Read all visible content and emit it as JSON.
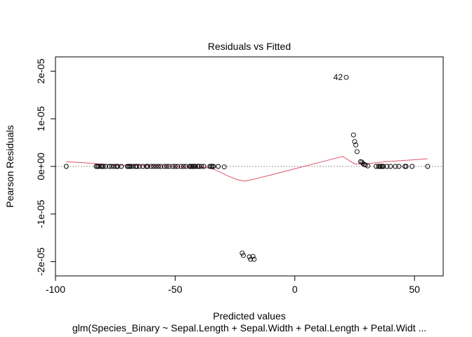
{
  "chart_data": {
    "type": "scatter",
    "title": "Residuals vs Fitted",
    "xlabel": "Predicted values",
    "subtitle": "glm(Species_Binary ~ Sepal.Length + Sepal.Width + Petal.Length + Petal.Widt ...",
    "ylabel": "Pearson Residuals",
    "xlim": [
      -100,
      62
    ],
    "ylim": [
      -2.3e-05,
      2.3e-05
    ],
    "x_ticks": [
      -100,
      -50,
      0,
      50
    ],
    "x_tick_labels": [
      "-100",
      "-50",
      "0",
      "50"
    ],
    "y_ticks": [
      -2e-05,
      -1e-05,
      0,
      1e-05,
      2e-05
    ],
    "y_tick_labels": [
      "-2e-05",
      "-1e-05",
      "0e+00",
      "1e-05",
      "2e-05"
    ],
    "reference_line_y": 0,
    "colors": {
      "points": "#000000",
      "smooth": "#df536b",
      "reference": "#999999"
    },
    "series": [
      {
        "points": [
          [
            -95.5,
            0
          ],
          [
            -83,
            0
          ],
          [
            -82.5,
            0
          ],
          [
            -82,
            0
          ],
          [
            -81,
            0
          ],
          [
            -80.5,
            0
          ],
          [
            -80,
            0
          ],
          [
            -79,
            0
          ],
          [
            -77.5,
            0
          ],
          [
            -76.5,
            0
          ],
          [
            -75.5,
            0
          ],
          [
            -74.5,
            0
          ],
          [
            -74,
            0
          ],
          [
            -72.5,
            0
          ],
          [
            -70,
            0
          ],
          [
            -69.5,
            0
          ],
          [
            -69,
            0
          ],
          [
            -68.5,
            0
          ],
          [
            -67.5,
            0
          ],
          [
            -66.5,
            0
          ],
          [
            -66,
            0
          ],
          [
            -65,
            0
          ],
          [
            -63.5,
            0
          ],
          [
            -62,
            0
          ],
          [
            -61.5,
            0
          ],
          [
            -60,
            0
          ],
          [
            -59,
            0
          ],
          [
            -58,
            0
          ],
          [
            -57,
            0
          ],
          [
            -56,
            0
          ],
          [
            -54.5,
            0
          ],
          [
            -53.5,
            0
          ],
          [
            -52.5,
            0
          ],
          [
            -51,
            0
          ],
          [
            -50,
            0
          ],
          [
            -49,
            0
          ],
          [
            -47.5,
            0
          ],
          [
            -46.5,
            0
          ],
          [
            -45.5,
            0
          ],
          [
            -44,
            0
          ],
          [
            -43.5,
            0
          ],
          [
            -43,
            0
          ],
          [
            -42.5,
            0
          ],
          [
            -42,
            0
          ],
          [
            -41.5,
            0
          ],
          [
            -40.5,
            0
          ],
          [
            -40,
            0
          ],
          [
            -39,
            0
          ],
          [
            -38,
            0
          ],
          [
            -35.5,
            0
          ],
          [
            -35,
            0
          ],
          [
            -34.5,
            0
          ],
          [
            -34,
            0
          ],
          [
            -32,
            0
          ],
          [
            -29.5,
            -1e-07
          ],
          [
            -22,
            -1.82e-05
          ],
          [
            -21.5,
            -1.87e-05
          ],
          [
            -19,
            -1.9e-05
          ],
          [
            -18.5,
            -1.95e-05
          ],
          [
            -17.5,
            -1.89e-05
          ],
          [
            -17,
            -1.95e-05
          ],
          [
            21.5,
            1.87e-05
          ],
          [
            24.5,
            6.6e-06
          ],
          [
            25,
            5.2e-06
          ],
          [
            25.5,
            4.5e-06
          ],
          [
            26,
            3.1e-06
          ],
          [
            27.5,
            1e-06
          ],
          [
            28,
            9e-07
          ],
          [
            28.5,
            6e-07
          ],
          [
            29,
            4e-07
          ],
          [
            29.5,
            3e-07
          ],
          [
            30.5,
            1e-07
          ],
          [
            34,
            0
          ],
          [
            35,
            0
          ],
          [
            35.5,
            0
          ],
          [
            36,
            0
          ],
          [
            36.5,
            0
          ],
          [
            37,
            0
          ],
          [
            38.5,
            0
          ],
          [
            40,
            0
          ],
          [
            42,
            0
          ],
          [
            43.5,
            0
          ],
          [
            46,
            0
          ],
          [
            46.5,
            0
          ],
          [
            49,
            0
          ],
          [
            55.5,
            0
          ]
        ]
      },
      {
        "smooth_line": [
          [
            -95.5,
            1e-06
          ],
          [
            -86,
            7e-07
          ],
          [
            -76,
            3e-07
          ],
          [
            -66,
            2e-07
          ],
          [
            -56,
            1e-07
          ],
          [
            -46,
            0
          ],
          [
            -40,
            -1e-07
          ],
          [
            -35,
            -4e-07
          ],
          [
            -32,
            -1e-06
          ],
          [
            -28,
            -2e-06
          ],
          [
            -24,
            -2.8e-06
          ],
          [
            -21,
            -3.1e-06
          ],
          [
            -18,
            -2.8e-06
          ],
          [
            -10,
            -1.8e-06
          ],
          [
            0,
            -5e-07
          ],
          [
            10,
            8e-07
          ],
          [
            20,
            2.1e-06
          ],
          [
            25,
            5e-07
          ],
          [
            28,
            5e-07
          ],
          [
            33,
            7e-07
          ],
          [
            38,
            1e-06
          ],
          [
            44,
            1.2e-06
          ],
          [
            50,
            1.4e-06
          ],
          [
            55.5,
            1.6e-06
          ]
        ]
      }
    ],
    "annotations": [
      {
        "x": 21.5,
        "y": 1.87e-05,
        "text": "42"
      }
    ]
  }
}
